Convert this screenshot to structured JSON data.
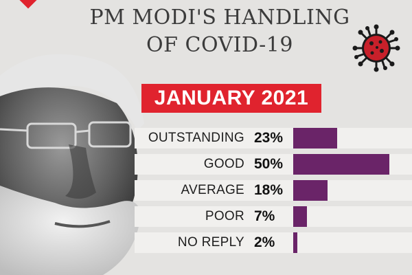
{
  "header": {
    "title_line1": "PM MODI'S HANDLING",
    "title_line2": "OF COVID-19"
  },
  "banner": {
    "label": "JANUARY 2021"
  },
  "colors": {
    "accent": "#e0232e",
    "bar": "#6a2468",
    "row_bg": "#f1f0ee"
  },
  "chart_data": {
    "type": "bar",
    "orientation": "horizontal",
    "title": "PM MODI'S HANDLING OF COVID-19",
    "subtitle": "JANUARY 2021",
    "categories": [
      "OUTSTANDING",
      "GOOD",
      "AVERAGE",
      "POOR",
      "NO REPLY"
    ],
    "values": [
      23,
      50,
      18,
      7,
      2
    ],
    "value_labels": [
      "23%",
      "50%",
      "18%",
      "7%",
      "2%"
    ],
    "unit": "%",
    "xlim": [
      0,
      50
    ],
    "grid": false,
    "legend": "none"
  }
}
